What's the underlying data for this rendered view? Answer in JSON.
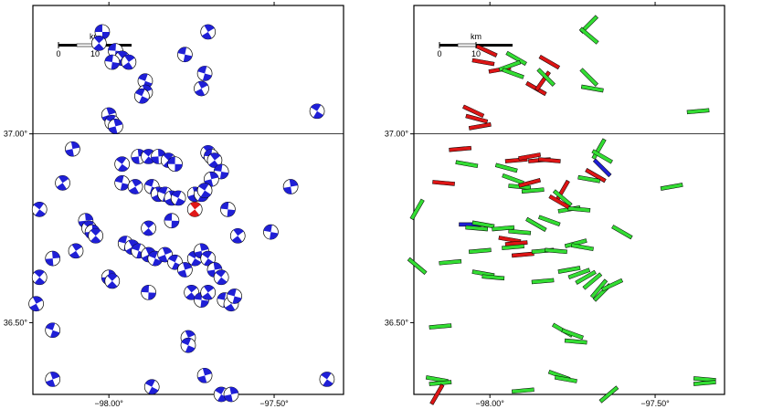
{
  "map": {
    "lat_labels": [
      "37.00°",
      "36.50°"
    ],
    "lon_labels": [
      "−98.00°",
      "−97.50°"
    ],
    "lat_ticks": [
      37.0,
      36.5
    ],
    "lon_ticks": [
      -98.0,
      -97.5
    ],
    "lat_range": [
      36.31,
      37.34
    ],
    "lon_range": [
      -98.23,
      -97.29
    ],
    "scale_bar": {
      "unit_label": "km",
      "tick_labels": [
        "0",
        "10"
      ]
    },
    "colors": {
      "mechanism": "#1f1fd6",
      "highlight": "#e01818",
      "stress_green": "#33dd33",
      "stress_red": "#dd1515",
      "stress_blue": "#1f1fd6"
    }
  },
  "left_panel": {
    "title": "",
    "mechanisms": [
      [
        -98.02,
        37.27
      ],
      [
        -98.03,
        37.24
      ],
      [
        -97.98,
        37.22
      ],
      [
        -97.96,
        37.2
      ],
      [
        -97.99,
        37.19
      ],
      [
        -97.94,
        37.19
      ],
      [
        -97.77,
        37.21
      ],
      [
        -97.7,
        37.27
      ],
      [
        -97.71,
        37.16
      ],
      [
        -97.72,
        37.12
      ],
      [
        -97.89,
        37.14
      ],
      [
        -97.89,
        37.11
      ],
      [
        -97.9,
        37.1
      ],
      [
        -98.0,
        37.05
      ],
      [
        -97.99,
        37.03
      ],
      [
        -97.98,
        37.02
      ],
      [
        -97.37,
        37.06
      ],
      [
        -98.11,
        36.96
      ],
      [
        -97.96,
        36.92
      ],
      [
        -97.91,
        36.94
      ],
      [
        -97.88,
        36.94
      ],
      [
        -97.85,
        36.94
      ],
      [
        -97.82,
        36.93
      ],
      [
        -97.8,
        36.92
      ],
      [
        -97.7,
        36.95
      ],
      [
        -97.69,
        36.94
      ],
      [
        -97.68,
        36.93
      ],
      [
        -97.66,
        36.9
      ],
      [
        -98.14,
        36.87
      ],
      [
        -97.96,
        36.87
      ],
      [
        -97.92,
        36.86
      ],
      [
        -97.87,
        36.86
      ],
      [
        -97.85,
        36.84
      ],
      [
        -97.83,
        36.84
      ],
      [
        -97.81,
        36.83
      ],
      [
        -97.79,
        36.83
      ],
      [
        -97.74,
        36.84
      ],
      [
        -97.72,
        36.84
      ],
      [
        -97.69,
        36.88
      ],
      [
        -97.71,
        36.85
      ],
      [
        -97.45,
        36.86
      ],
      [
        -98.21,
        36.8
      ],
      [
        -98.07,
        36.77
      ],
      [
        -98.06,
        36.75
      ],
      [
        -98.05,
        36.74
      ],
      [
        -98.04,
        36.73
      ],
      [
        -97.81,
        36.77
      ],
      [
        -97.88,
        36.75
      ],
      [
        -97.64,
        36.8
      ],
      [
        -97.61,
        36.73
      ],
      [
        -97.51,
        36.74
      ],
      [
        -98.1,
        36.69
      ],
      [
        -97.95,
        36.71
      ],
      [
        -97.93,
        36.7
      ],
      [
        -97.91,
        36.69
      ],
      [
        -97.88,
        36.68
      ],
      [
        -97.86,
        36.67
      ],
      [
        -97.83,
        36.68
      ],
      [
        -97.8,
        36.66
      ],
      [
        -97.77,
        36.64
      ],
      [
        -97.74,
        36.67
      ],
      [
        -97.72,
        36.69
      ],
      [
        -97.7,
        36.67
      ],
      [
        -97.68,
        36.64
      ],
      [
        -97.66,
        36.62
      ],
      [
        -98.17,
        36.67
      ],
      [
        -98.21,
        36.62
      ],
      [
        -98.0,
        36.62
      ],
      [
        -97.99,
        36.61
      ],
      [
        -97.88,
        36.58
      ],
      [
        -97.75,
        36.58
      ],
      [
        -97.72,
        36.56
      ],
      [
        -97.7,
        36.58
      ],
      [
        -97.65,
        36.56
      ],
      [
        -97.63,
        36.55
      ],
      [
        -97.62,
        36.57
      ],
      [
        -98.22,
        36.55
      ],
      [
        -98.17,
        36.48
      ],
      [
        -97.76,
        36.46
      ],
      [
        -97.76,
        36.44
      ],
      [
        -98.17,
        36.35
      ],
      [
        -97.87,
        36.33
      ],
      [
        -97.71,
        36.36
      ],
      [
        -97.66,
        36.31
      ],
      [
        -97.63,
        36.31
      ],
      [
        -97.34,
        36.35
      ]
    ],
    "highlight": [
      -97.74,
      36.8
    ]
  },
  "right_panel": {
    "title": "",
    "stress_bars": [
      {
        "c": "red",
        "p": [
          -98.01,
          37.22
        ],
        "a": 25
      },
      {
        "c": "red",
        "p": [
          -98.02,
          37.19
        ],
        "a": 10
      },
      {
        "c": "red",
        "p": [
          -97.97,
          37.17
        ],
        "a": -10
      },
      {
        "c": "green",
        "p": [
          -97.92,
          37.2
        ],
        "a": 30
      },
      {
        "c": "green",
        "p": [
          -97.94,
          37.18
        ],
        "a": -20
      },
      {
        "c": "green",
        "p": [
          -97.93,
          37.16
        ],
        "a": 20
      },
      {
        "c": "red",
        "p": [
          -97.82,
          37.19
        ],
        "a": 30
      },
      {
        "c": "green",
        "p": [
          -97.7,
          37.29
        ],
        "a": -45
      },
      {
        "c": "green",
        "p": [
          -97.7,
          37.26
        ],
        "a": 40
      },
      {
        "c": "red",
        "p": [
          -97.86,
          37.12
        ],
        "a": 30
      },
      {
        "c": "red",
        "p": [
          -97.84,
          37.14
        ],
        "a": -55
      },
      {
        "c": "green",
        "p": [
          -97.83,
          37.15
        ],
        "a": 45
      },
      {
        "c": "green",
        "p": [
          -97.7,
          37.15
        ],
        "a": 45
      },
      {
        "c": "green",
        "p": [
          -97.69,
          37.12
        ],
        "a": 10
      },
      {
        "c": "red",
        "p": [
          -98.05,
          37.06
        ],
        "a": 25
      },
      {
        "c": "red",
        "p": [
          -98.04,
          37.04
        ],
        "a": 15
      },
      {
        "c": "red",
        "p": [
          -98.03,
          37.02
        ],
        "a": -10
      },
      {
        "c": "green",
        "p": [
          -97.37,
          37.06
        ],
        "a": -5
      },
      {
        "c": "red",
        "p": [
          -98.09,
          36.96
        ],
        "a": -5
      },
      {
        "c": "red",
        "p": [
          -97.92,
          36.93
        ],
        "a": -5
      },
      {
        "c": "red",
        "p": [
          -97.88,
          36.94
        ],
        "a": -10
      },
      {
        "c": "red",
        "p": [
          -97.85,
          36.93
        ],
        "a": -5
      },
      {
        "c": "red",
        "p": [
          -97.82,
          36.93
        ],
        "a": 5
      },
      {
        "c": "green",
        "p": [
          -97.67,
          36.96
        ],
        "a": -60
      },
      {
        "c": "green",
        "p": [
          -97.66,
          36.94
        ],
        "a": 30
      },
      {
        "c": "red",
        "p": [
          -97.68,
          36.89
        ],
        "a": 30
      },
      {
        "c": "blue",
        "p": [
          -97.66,
          36.91
        ],
        "a": 45
      },
      {
        "c": "green",
        "p": [
          -97.7,
          36.88
        ],
        "a": 10
      },
      {
        "c": "green",
        "p": [
          -98.07,
          36.92
        ],
        "a": 10
      },
      {
        "c": "green",
        "p": [
          -97.95,
          36.91
        ],
        "a": 15
      },
      {
        "c": "green",
        "p": [
          -97.93,
          36.88
        ],
        "a": 20
      },
      {
        "c": "green",
        "p": [
          -97.91,
          36.86
        ],
        "a": 5
      },
      {
        "c": "green",
        "p": [
          -97.87,
          36.85
        ],
        "a": -5
      },
      {
        "c": "red",
        "p": [
          -97.88,
          36.87
        ],
        "a": -15
      },
      {
        "c": "red",
        "p": [
          -97.78,
          36.85
        ],
        "a": -60
      },
      {
        "c": "green",
        "p": [
          -97.78,
          36.83
        ],
        "a": 40
      },
      {
        "c": "green",
        "p": [
          -97.76,
          36.8
        ],
        "a": -10
      },
      {
        "c": "red",
        "p": [
          -97.79,
          36.82
        ],
        "a": 30
      },
      {
        "c": "green",
        "p": [
          -97.73,
          36.8
        ],
        "a": 5
      },
      {
        "c": "red",
        "p": [
          -98.14,
          36.87
        ],
        "a": 5
      },
      {
        "c": "green",
        "p": [
          -97.45,
          36.86
        ],
        "a": -10
      },
      {
        "c": "green",
        "p": [
          -98.22,
          36.8
        ],
        "a": -60
      },
      {
        "c": "blue",
        "p": [
          -98.06,
          36.76
        ],
        "a": 0
      },
      {
        "c": "green",
        "p": [
          -98.04,
          36.75
        ],
        "a": 5
      },
      {
        "c": "green",
        "p": [
          -98.02,
          36.76
        ],
        "a": 10
      },
      {
        "c": "green",
        "p": [
          -97.96,
          36.75
        ],
        "a": -5
      },
      {
        "c": "green",
        "p": [
          -97.91,
          36.74
        ],
        "a": 5
      },
      {
        "c": "green",
        "p": [
          -97.86,
          36.76
        ],
        "a": 30
      },
      {
        "c": "green",
        "p": [
          -97.82,
          36.77
        ],
        "a": 20
      },
      {
        "c": "red",
        "p": [
          -97.94,
          36.72
        ],
        "a": 10
      },
      {
        "c": "red",
        "p": [
          -97.92,
          36.71
        ],
        "a": -5
      },
      {
        "c": "red",
        "p": [
          -97.9,
          36.68
        ],
        "a": -5
      },
      {
        "c": "green",
        "p": [
          -97.84,
          36.69
        ],
        "a": -5
      },
      {
        "c": "green",
        "p": [
          -97.8,
          36.69
        ],
        "a": 5
      },
      {
        "c": "green",
        "p": [
          -97.74,
          36.71
        ],
        "a": -15
      },
      {
        "c": "green",
        "p": [
          -97.72,
          36.7
        ],
        "a": 10
      },
      {
        "c": "green",
        "p": [
          -97.6,
          36.74
        ],
        "a": 30
      },
      {
        "c": "green",
        "p": [
          -98.03,
          36.69
        ],
        "a": -5
      },
      {
        "c": "green",
        "p": [
          -97.93,
          36.7
        ],
        "a": -5
      },
      {
        "c": "green",
        "p": [
          -98.12,
          36.66
        ],
        "a": -5
      },
      {
        "c": "green",
        "p": [
          -98.22,
          36.65
        ],
        "a": 40
      },
      {
        "c": "green",
        "p": [
          -98.02,
          36.63
        ],
        "a": 10
      },
      {
        "c": "green",
        "p": [
          -97.99,
          36.62
        ],
        "a": 5
      },
      {
        "c": "green",
        "p": [
          -97.84,
          36.61
        ],
        "a": -5
      },
      {
        "c": "green",
        "p": [
          -97.76,
          36.64
        ],
        "a": -10
      },
      {
        "c": "green",
        "p": [
          -97.73,
          36.63
        ],
        "a": -20
      },
      {
        "c": "green",
        "p": [
          -97.71,
          36.62
        ],
        "a": -30
      },
      {
        "c": "green",
        "p": [
          -97.69,
          36.61
        ],
        "a": -40
      },
      {
        "c": "green",
        "p": [
          -97.67,
          36.59
        ],
        "a": -50
      },
      {
        "c": "green",
        "p": [
          -97.66,
          36.58
        ],
        "a": -45
      },
      {
        "c": "green",
        "p": [
          -97.63,
          36.6
        ],
        "a": -25
      },
      {
        "c": "green",
        "p": [
          -98.15,
          36.49
        ],
        "a": -5
      },
      {
        "c": "green",
        "p": [
          -97.78,
          36.48
        ],
        "a": 30
      },
      {
        "c": "green",
        "p": [
          -97.75,
          36.47
        ],
        "a": 20
      },
      {
        "c": "green",
        "p": [
          -97.74,
          36.45
        ],
        "a": 5
      },
      {
        "c": "green",
        "p": [
          -98.16,
          36.35
        ],
        "a": 10
      },
      {
        "c": "green",
        "p": [
          -98.15,
          36.34
        ],
        "a": -5
      },
      {
        "c": "red",
        "p": [
          -98.16,
          36.31
        ],
        "a": -60
      },
      {
        "c": "green",
        "p": [
          -97.79,
          36.36
        ],
        "a": 20
      },
      {
        "c": "green",
        "p": [
          -97.77,
          36.35
        ],
        "a": 10
      },
      {
        "c": "green",
        "p": [
          -97.9,
          36.32
        ],
        "a": -5
      },
      {
        "c": "green",
        "p": [
          -97.64,
          36.31
        ],
        "a": -40
      },
      {
        "c": "green",
        "p": [
          -97.35,
          36.35
        ],
        "a": 5
      },
      {
        "c": "green",
        "p": [
          -97.35,
          36.34
        ],
        "a": -5
      }
    ]
  }
}
